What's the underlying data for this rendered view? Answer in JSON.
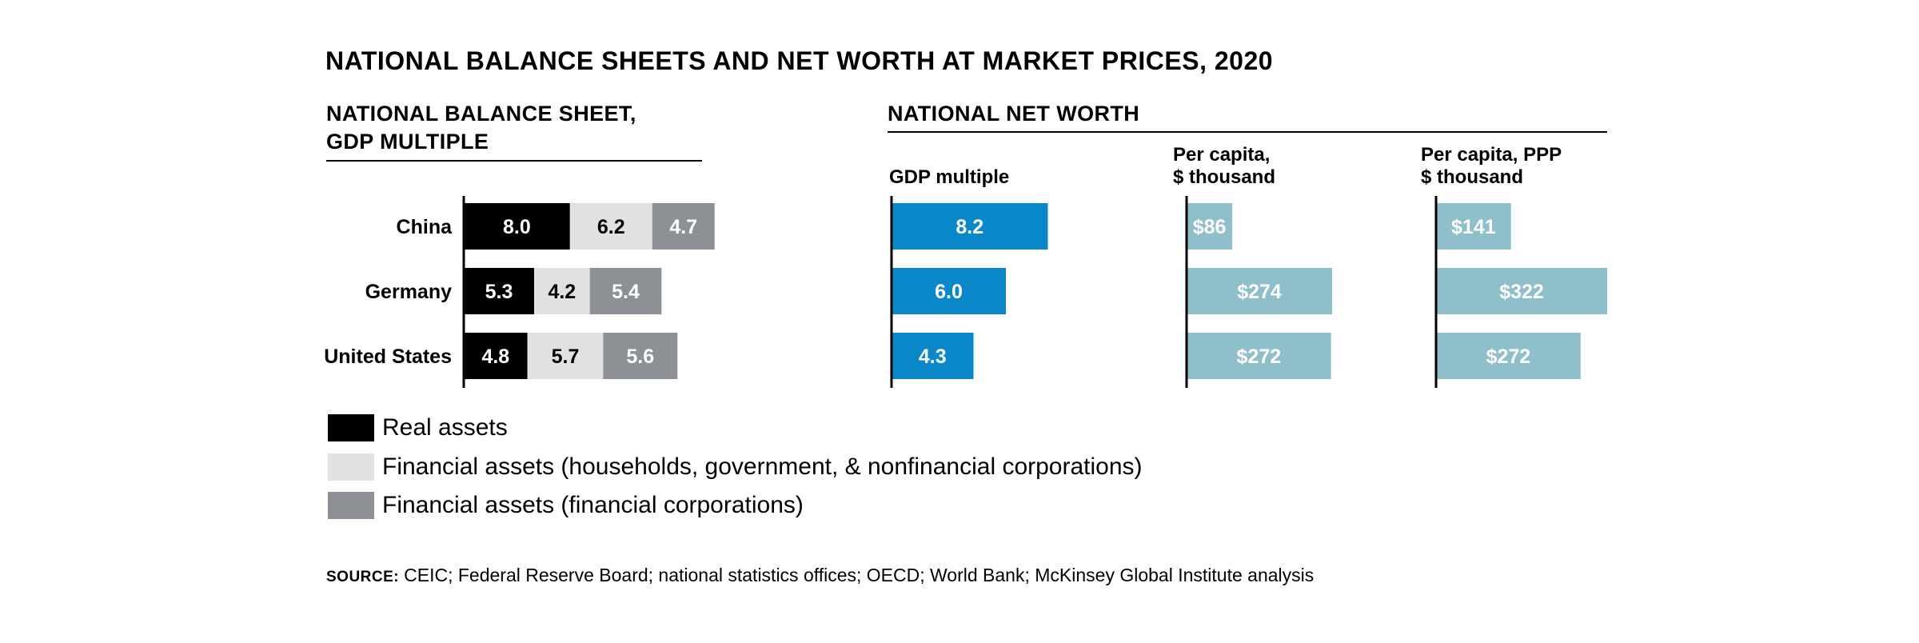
{
  "title": "NATIONAL BALANCE SHEETS AND NET WORTH AT MARKET PRICES, 2020",
  "left_panel": {
    "title_line1": "NATIONAL BALANCE SHEET,",
    "title_line2": "GDP MULTIPLE"
  },
  "right_panel": {
    "title": "NATIONAL NET WORTH",
    "col1_header": "GDP multiple",
    "col2_header_line1": "Per capita,",
    "col2_header_line2": "$ thousand",
    "col3_header_line1": "Per capita, PPP",
    "col3_header_line2": "$ thousand"
  },
  "legend": {
    "items": [
      {
        "label": "Real assets",
        "color": "#000000"
      },
      {
        "label": "Financial assets (households, government, & nonfinancial corporations)",
        "color": "#dfe1e2"
      },
      {
        "label": "Financial assets (financial corporations)",
        "color": "#8d9195"
      }
    ]
  },
  "source": {
    "key": "SOURCE:",
    "text": "CEIC; Federal Reserve Board; national statistics offices; OECD; World Bank; McKinsey Global Institute analysis"
  },
  "colors": {
    "gdp_bar": "#0a87c9",
    "per_capita_bar": "#8fbfca"
  },
  "chart_data": [
    {
      "type": "bar",
      "title": "NATIONAL BALANCE SHEET, GDP MULTIPLE",
      "orientation": "horizontal",
      "stacked": true,
      "categories": [
        "China",
        "Germany",
        "United States"
      ],
      "series": [
        {
          "name": "Real assets",
          "values": [
            8.0,
            5.3,
            4.8
          ],
          "labels": [
            "8.0",
            "5.3",
            "4.8"
          ],
          "color": "#000000",
          "label_color": "#ffffff"
        },
        {
          "name": "Financial assets (households, government, & nonfinancial corporations)",
          "values": [
            6.2,
            4.2,
            5.7
          ],
          "labels": [
            "6.2",
            "4.2",
            "5.7"
          ],
          "color": "#dfe1e2",
          "label_color": "#000000"
        },
        {
          "name": "Financial assets (financial corporations)",
          "values": [
            4.7,
            5.4,
            5.6
          ],
          "labels": [
            "4.7",
            "5.4",
            "5.6"
          ],
          "color": "#8d9195",
          "label_color": "#ffffff"
        }
      ],
      "xlim": [
        0,
        20
      ]
    },
    {
      "type": "bar",
      "title": "GDP multiple",
      "orientation": "horizontal",
      "categories": [
        "China",
        "Germany",
        "United States"
      ],
      "values": [
        8.2,
        6.0,
        4.3
      ],
      "labels": [
        "8.2",
        "6.0",
        "4.3"
      ],
      "xlim": [
        0,
        20
      ]
    },
    {
      "type": "bar",
      "title": "Per capita, $ thousand",
      "orientation": "horizontal",
      "categories": [
        "China",
        "Germany",
        "United States"
      ],
      "values": [
        86,
        274,
        272
      ],
      "labels": [
        "$86",
        "$274",
        "$272"
      ],
      "xlim": [
        0,
        322
      ]
    },
    {
      "type": "bar",
      "title": "Per capita, PPP $ thousand",
      "orientation": "horizontal",
      "categories": [
        "China",
        "Germany",
        "United States"
      ],
      "values": [
        141,
        322,
        272
      ],
      "labels": [
        "$141",
        "$322",
        "$272"
      ],
      "xlim": [
        0,
        322
      ]
    }
  ]
}
